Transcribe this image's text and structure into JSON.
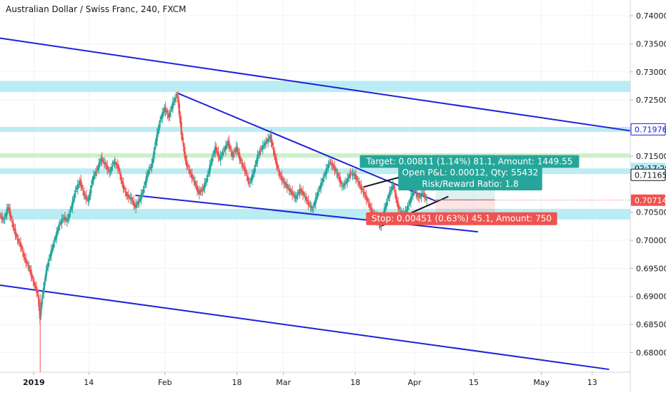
{
  "chart_data": {
    "type": "candlestick",
    "title": "Australian Dollar / Swiss Franc, 240, FXCM",
    "xlabel": "",
    "ylabel": "",
    "ylim": [
      0.6765,
      0.7428
    ],
    "grid": true,
    "x_ticks": [
      {
        "label": "2019",
        "date": "2019-01-01",
        "bold": true
      },
      {
        "label": "14",
        "date": "2019-01-14"
      },
      {
        "label": "Feb",
        "date": "2019-02-01"
      },
      {
        "label": "18",
        "date": "2019-02-18"
      },
      {
        "label": "Mar",
        "date": "2019-03-01"
      },
      {
        "label": "18",
        "date": "2019-03-18"
      },
      {
        "label": "Apr",
        "date": "2019-04-01"
      },
      {
        "label": "15",
        "date": "2019-04-15"
      },
      {
        "label": "May",
        "date": "2019-05-01"
      },
      {
        "label": "13",
        "date": "2019-05-13"
      }
    ],
    "y_ticks": [
      "0.74000",
      "0.73500",
      "0.73000",
      "0.72500",
      "0.71500",
      "0.70500",
      "0.70000",
      "0.69500",
      "0.69000",
      "0.68500",
      "0.68000"
    ],
    "price_series": [
      [
        "2018-12-24",
        0.7045
      ],
      [
        "2018-12-25",
        0.7035
      ],
      [
        "2018-12-26",
        0.706
      ],
      [
        "2018-12-27",
        0.703
      ],
      [
        "2018-12-28",
        0.7005
      ],
      [
        "2018-12-29",
        0.699
      ],
      [
        "2018-12-30",
        0.6965
      ],
      [
        "2018-12-31",
        0.695
      ],
      [
        "2019-01-01",
        0.6925
      ],
      [
        "2019-01-02",
        0.6905
      ],
      [
        "2019-01-02.5",
        0.6862
      ],
      [
        "2019-01-03",
        0.6895
      ],
      [
        "2019-01-03.5",
        0.692
      ],
      [
        "2019-01-04",
        0.6945
      ],
      [
        "2019-01-05",
        0.6975
      ],
      [
        "2019-01-06",
        0.7
      ],
      [
        "2019-01-07",
        0.7025
      ],
      [
        "2019-01-08",
        0.704
      ],
      [
        "2019-01-09",
        0.7035
      ],
      [
        "2019-01-10",
        0.706
      ],
      [
        "2019-01-11",
        0.709
      ],
      [
        "2019-01-12",
        0.7105
      ],
      [
        "2019-01-13",
        0.708
      ],
      [
        "2019-01-14",
        0.707
      ],
      [
        "2019-01-15",
        0.711
      ],
      [
        "2019-01-16",
        0.7125
      ],
      [
        "2019-01-17",
        0.7145
      ],
      [
        "2019-01-18",
        0.7135
      ],
      [
        "2019-01-19",
        0.712
      ],
      [
        "2019-01-20",
        0.714
      ],
      [
        "2019-01-21",
        0.713
      ],
      [
        "2019-01-22",
        0.71
      ],
      [
        "2019-01-23",
        0.708
      ],
      [
        "2019-01-24",
        0.7075
      ],
      [
        "2019-01-25",
        0.706
      ],
      [
        "2019-01-26",
        0.707
      ],
      [
        "2019-01-27",
        0.709
      ],
      [
        "2019-01-28",
        0.712
      ],
      [
        "2019-01-29",
        0.7135
      ],
      [
        "2019-01-30",
        0.718
      ],
      [
        "2019-01-31",
        0.7215
      ],
      [
        "2019-02-01",
        0.7235
      ],
      [
        "2019-02-02",
        0.722
      ],
      [
        "2019-02-03",
        0.7245
      ],
      [
        "2019-02-04",
        0.726
      ],
      [
        "2019-02-05",
        0.719
      ],
      [
        "2019-02-06",
        0.714
      ],
      [
        "2019-02-07",
        0.712
      ],
      [
        "2019-02-08",
        0.7105
      ],
      [
        "2019-02-09",
        0.7085
      ],
      [
        "2019-02-10",
        0.709
      ],
      [
        "2019-02-11",
        0.711
      ],
      [
        "2019-02-12",
        0.714
      ],
      [
        "2019-02-13",
        0.7165
      ],
      [
        "2019-02-14",
        0.7145
      ],
      [
        "2019-02-15",
        0.716
      ],
      [
        "2019-02-16",
        0.7175
      ],
      [
        "2019-02-17",
        0.715
      ],
      [
        "2019-02-18",
        0.7165
      ],
      [
        "2019-02-19",
        0.714
      ],
      [
        "2019-02-20",
        0.7125
      ],
      [
        "2019-02-21",
        0.71
      ],
      [
        "2019-02-22",
        0.712
      ],
      [
        "2019-02-23",
        0.715
      ],
      [
        "2019-02-24",
        0.7165
      ],
      [
        "2019-02-25",
        0.7175
      ],
      [
        "2019-02-26",
        0.7185
      ],
      [
        "2019-02-27",
        0.715
      ],
      [
        "2019-02-28",
        0.712
      ],
      [
        "2019-03-01",
        0.7105
      ],
      [
        "2019-03-02",
        0.7095
      ],
      [
        "2019-03-03",
        0.7085
      ],
      [
        "2019-03-04",
        0.7075
      ],
      [
        "2019-03-05",
        0.709
      ],
      [
        "2019-03-06",
        0.708
      ],
      [
        "2019-03-07",
        0.7065
      ],
      [
        "2019-03-08",
        0.7055
      ],
      [
        "2019-03-09",
        0.708
      ],
      [
        "2019-03-10",
        0.71
      ],
      [
        "2019-03-11",
        0.712
      ],
      [
        "2019-03-12",
        0.714
      ],
      [
        "2019-03-13",
        0.713
      ],
      [
        "2019-03-14",
        0.7115
      ],
      [
        "2019-03-15",
        0.7095
      ],
      [
        "2019-03-16",
        0.7105
      ],
      [
        "2019-03-17",
        0.712
      ],
      [
        "2019-03-18",
        0.7115
      ],
      [
        "2019-03-19",
        0.71
      ],
      [
        "2019-03-20",
        0.7085
      ],
      [
        "2019-03-21",
        0.707
      ],
      [
        "2019-03-22",
        0.705
      ],
      [
        "2019-03-23",
        0.704
      ],
      [
        "2019-03-24",
        0.7025
      ],
      [
        "2019-03-25",
        0.7055
      ],
      [
        "2019-03-26",
        0.708
      ],
      [
        "2019-03-27",
        0.71
      ],
      [
        "2019-03-28",
        0.7065
      ],
      [
        "2019-03-29",
        0.7045
      ],
      [
        "2019-03-30",
        0.705
      ],
      [
        "2019-03-31",
        0.707
      ],
      [
        "2019-04-01",
        0.709
      ],
      [
        "2019-04-02",
        0.7075
      ],
      [
        "2019-04-03",
        0.7085
      ],
      [
        "2019-04-04",
        0.7071
      ]
    ],
    "series": [
      {
        "values": [
          [
            0.7085,
            0.7065
          ]
        ]
      }
    ],
    "horizontal_zones": [
      {
        "low": 0.7264,
        "high": 0.7284,
        "color": "#b2ebf2"
      },
      {
        "low": 0.7193,
        "high": 0.7202,
        "color": "#b2ebf2"
      },
      {
        "low": 0.7147,
        "high": 0.7155,
        "color": "#c8f0c8"
      },
      {
        "low": 0.7118,
        "high": 0.7128,
        "color": "#b2ebf2"
      },
      {
        "low": 0.7037,
        "high": 0.7056,
        "color": "#b2ebf2"
      }
    ],
    "position": {
      "entry_date": "2019-04-06",
      "end_date": "2019-04-20",
      "entry": 0.7072,
      "target": 0.7153,
      "stop": 0.7027,
      "target_label": "Target: 0.00811 (1.14%) 81.1, Amount: 1449.55",
      "open_pl_label": "Open P&L: 0.00012, Qty: 55432",
      "risk_reward_label": "Risk/Reward Ratio: 1.8",
      "stop_label": "Stop: 0.00451 (0.63%) 45.1, Amount: 750"
    },
    "trendlines": [
      {
        "color": "#1e22d8",
        "from": [
          "2018-12-24",
          0.736
        ],
        "to": [
          "2019-05-22",
          0.7195
        ]
      },
      {
        "color": "#1e22d8",
        "from": [
          "2018-12-24",
          0.692
        ],
        "to": [
          "2019-05-17",
          0.677
        ]
      },
      {
        "color": "#1e22d8",
        "from": [
          "2019-02-04",
          0.7262
        ],
        "to": [
          "2019-04-06",
          0.707
        ]
      },
      {
        "color": "#1e22d8",
        "from": [
          "2019-01-25",
          0.708
        ],
        "to": [
          "2019-04-16",
          0.7015
        ]
      },
      {
        "color": "#131722",
        "from": [
          "2019-03-20",
          0.7095
        ],
        "to": [
          "2019-04-12",
          0.7142
        ]
      },
      {
        "color": "#131722",
        "from": [
          "2019-03-24",
          0.7025
        ],
        "to": [
          "2019-04-09",
          0.7078
        ]
      }
    ],
    "price_labels": [
      {
        "text": "0.71976",
        "value": 0.71976,
        "bg": "#1e22d8",
        "fg": "#ffffff",
        "border": "#1e22d8",
        "bg_fill": "#ffffff"
      },
      {
        "text": "02:17:29",
        "value": 0.7128,
        "bg": "#b2ebf2",
        "fg": "#131722"
      },
      {
        "text": "0.71165",
        "value": 0.71165,
        "bg": "#ffffff",
        "fg": "#131722",
        "border": "#131722"
      },
      {
        "text": "0.70714",
        "value": 0.70714,
        "bg": "#ef5350",
        "fg": "#ffffff"
      }
    ],
    "colors": {
      "up": "#26a69a",
      "down": "#ef5350",
      "line": "#1e22d8",
      "target": "#26a69a",
      "stop": "#ef5350"
    }
  }
}
